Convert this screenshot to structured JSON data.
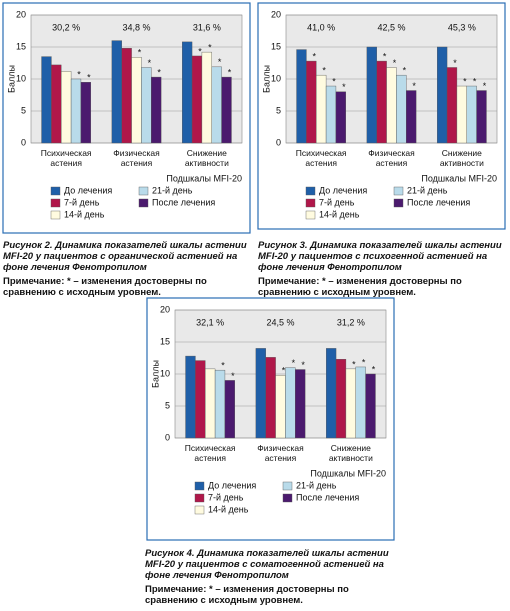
{
  "chart_data": [
    {
      "type": "bar",
      "ylabel": "Баллы",
      "xlabel": "Подшкалы MFI-20",
      "categories": [
        "Психическая астения",
        "Физическая астения",
        "Снижение активности"
      ],
      "annotations": [
        "30,2 %",
        "34,8 %",
        "31,6 %"
      ],
      "ylim": [
        0,
        20
      ],
      "yticks": [
        0,
        5,
        10,
        15,
        20
      ],
      "grid": true,
      "series": [
        {
          "name": "До лечения",
          "color": "#1f5fa8",
          "values": [
            13.5,
            16.0,
            15.8
          ],
          "stars": [
            null,
            null,
            null
          ]
        },
        {
          "name": "7-й день",
          "color": "#b0174a",
          "values": [
            12.2,
            14.8,
            13.6
          ],
          "stars": [
            null,
            null,
            "*"
          ]
        },
        {
          "name": "14-й день",
          "color": "#fffbe0",
          "values": [
            11.2,
            13.4,
            14.2
          ],
          "stars": [
            null,
            "*",
            "*"
          ]
        },
        {
          "name": "21-й день",
          "color": "#b9dbea",
          "values": [
            10.0,
            11.8,
            11.9
          ],
          "stars": [
            "*",
            "*",
            "*"
          ]
        },
        {
          "name": "После лечения",
          "color": "#4b1a6e",
          "values": [
            9.5,
            10.3,
            10.3
          ],
          "stars": [
            "*",
            "*",
            "*"
          ]
        }
      ],
      "caption": "Рисунок 2. Динамика показателей шкалы астении MFI-20 у пациентов с органической астенией на фоне лечения Фенотропилом",
      "note": "Примечание: * – изменения достоверны по сравнению с исходным уровнем."
    },
    {
      "type": "bar",
      "ylabel": "Баллы",
      "xlabel": "Подшкалы MFI-20",
      "categories": [
        "Психическая астения",
        "Физическая астения",
        "Снижение активности"
      ],
      "annotations": [
        "41,0 %",
        "42,5 %",
        "45,3 %"
      ],
      "ylim": [
        0,
        20
      ],
      "yticks": [
        0,
        5,
        10,
        15,
        20
      ],
      "grid": true,
      "series": [
        {
          "name": "До лечения",
          "color": "#1f5fa8",
          "values": [
            14.6,
            15.0,
            15.0
          ],
          "stars": [
            null,
            null,
            null
          ]
        },
        {
          "name": "7-й день",
          "color": "#b0174a",
          "values": [
            12.8,
            12.8,
            11.8
          ],
          "stars": [
            "*",
            "*",
            "*"
          ]
        },
        {
          "name": "14-й день",
          "color": "#fffbe0",
          "values": [
            10.6,
            11.8,
            8.9
          ],
          "stars": [
            "*",
            "*",
            "*"
          ]
        },
        {
          "name": "21-й день",
          "color": "#b9dbea",
          "values": [
            8.9,
            10.6,
            8.9
          ],
          "stars": [
            "*",
            "*",
            "*"
          ]
        },
        {
          "name": "После лечения",
          "color": "#4b1a6e",
          "values": [
            8.0,
            8.2,
            8.2
          ],
          "stars": [
            "*",
            "*",
            "*"
          ]
        }
      ],
      "caption": "Рисунок 3. Динамика показателей шкалы астении MFI-20 у пациентов с психогенной астенией на фоне лечения Фенотропилом",
      "note": "Примечание: * – изменения достоверны по сравнению с исходным уровнем."
    },
    {
      "type": "bar",
      "ylabel": "Баллы",
      "xlabel": "Подшкалы MFI-20",
      "categories": [
        "Психическая астения",
        "Физическая астения",
        "Снижение активности"
      ],
      "annotations": [
        "32,1 %",
        "24,5 %",
        "31,2 %"
      ],
      "ylim": [
        0,
        20
      ],
      "yticks": [
        0,
        5,
        10,
        15,
        20
      ],
      "grid": true,
      "series": [
        {
          "name": "До лечения",
          "color": "#1f5fa8",
          "values": [
            12.8,
            14.0,
            14.0
          ],
          "stars": [
            null,
            null,
            null
          ]
        },
        {
          "name": "7-й день",
          "color": "#b0174a",
          "values": [
            12.1,
            12.6,
            12.3
          ],
          "stars": [
            null,
            null,
            null
          ]
        },
        {
          "name": "14-й день",
          "color": "#fffbe0",
          "values": [
            10.8,
            9.8,
            10.8
          ],
          "stars": [
            null,
            "*",
            "*"
          ]
        },
        {
          "name": "21-й день",
          "color": "#b9dbea",
          "values": [
            10.6,
            11.0,
            11.1
          ],
          "stars": [
            "*",
            "*",
            "*"
          ]
        },
        {
          "name": "После лечения",
          "color": "#4b1a6e",
          "values": [
            9.0,
            10.7,
            10.0
          ],
          "stars": [
            "*",
            "*",
            "*"
          ]
        }
      ],
      "caption": "Рисунок 4. Динамика показателей шкалы астении MFI-20 у пациентов с соматогенной астенией на фоне лечения Фенотропилом",
      "note": "Примечание: * – изменения достоверны по сравнению с исходным уровнем."
    }
  ]
}
